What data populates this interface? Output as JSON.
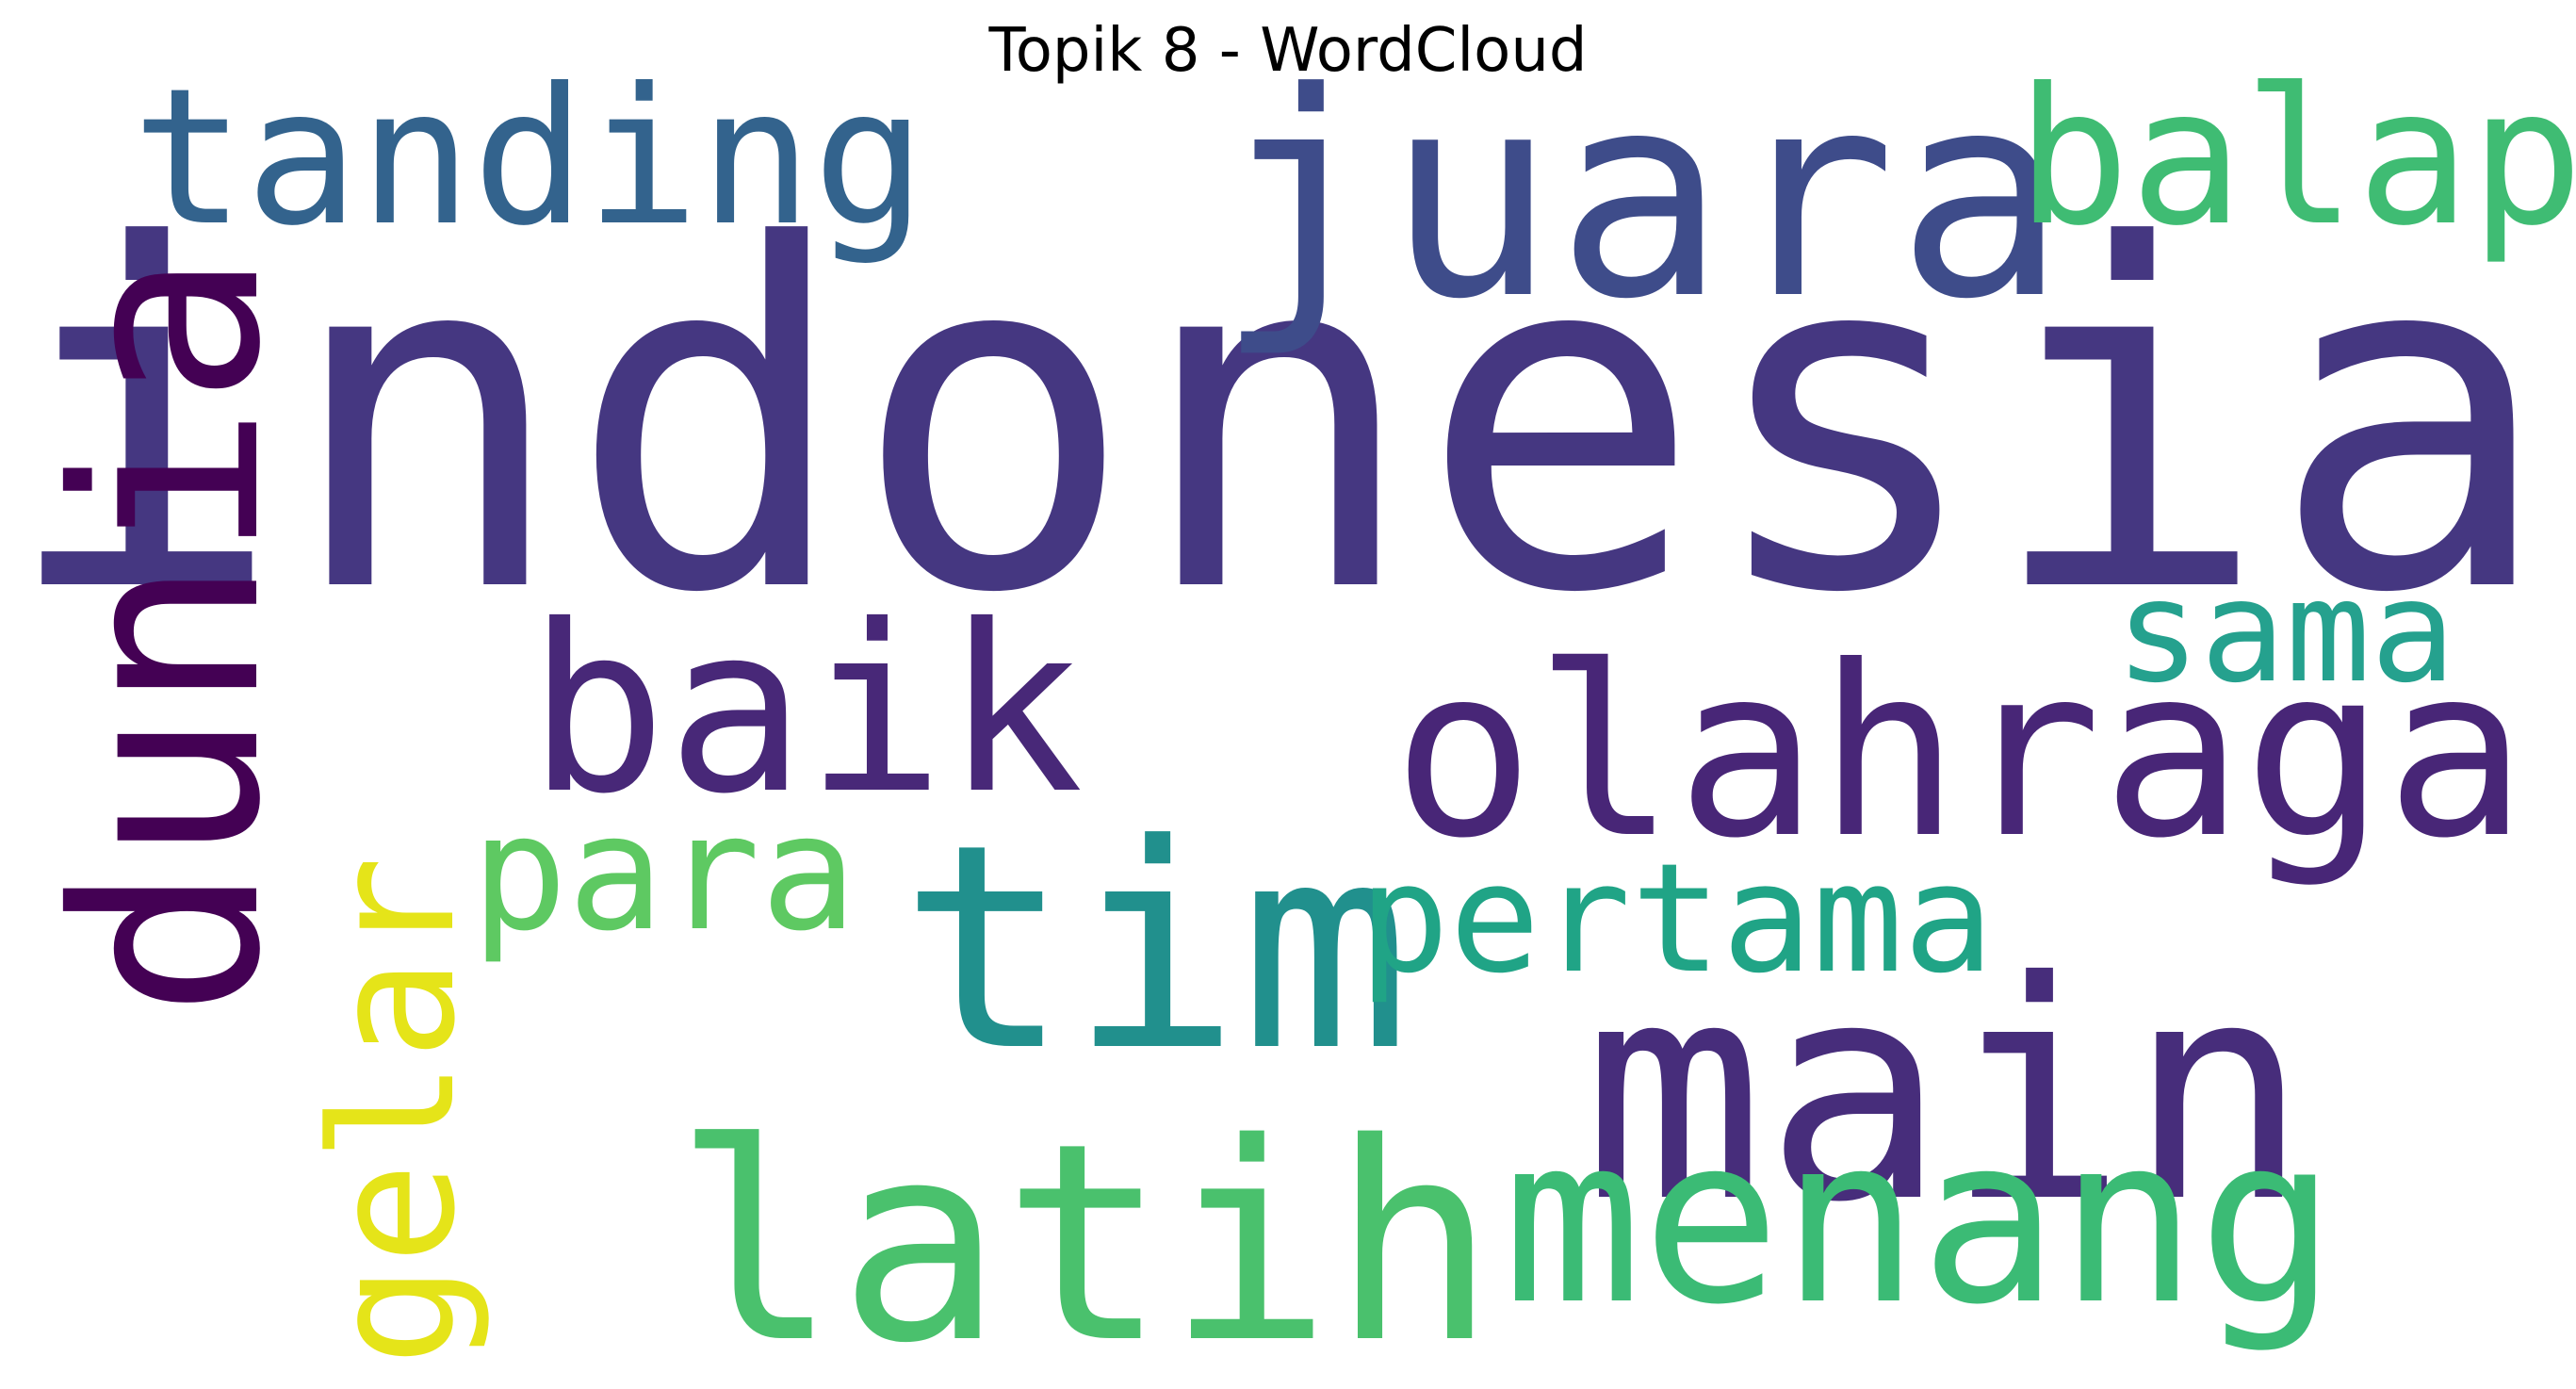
{
  "title": "Topik 8 - WordCloud",
  "words": [
    {
      "text": "indonesia",
      "color": "#453781"
    },
    {
      "text": "juara",
      "color": "#3e4c8a"
    },
    {
      "text": "tanding",
      "color": "#33638d"
    },
    {
      "text": "balap",
      "color": "#3fbc73"
    },
    {
      "text": "dunia",
      "color": "#440154"
    },
    {
      "text": "baik",
      "color": "#482878"
    },
    {
      "text": "olahraga",
      "color": "#482677"
    },
    {
      "text": "sama",
      "color": "#25a18e"
    },
    {
      "text": "gelar",
      "color": "#e5e419"
    },
    {
      "text": "para",
      "color": "#5ec962"
    },
    {
      "text": "tim",
      "color": "#21908d"
    },
    {
      "text": "pertama",
      "color": "#20a486"
    },
    {
      "text": "main",
      "color": "#472d7b"
    },
    {
      "text": "latih",
      "color": "#4ac16d"
    },
    {
      "text": "menang",
      "color": "#3bbb75"
    }
  ]
}
